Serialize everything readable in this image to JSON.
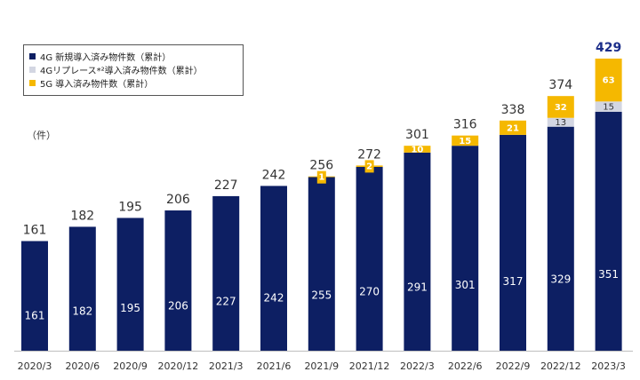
{
  "chart_data": {
    "type": "bar",
    "stacked": true,
    "unit": "（件）",
    "categories": [
      "2020/3",
      "2020/6",
      "2020/9",
      "2020/12",
      "2021/3",
      "2021/6",
      "2021/9",
      "2021/12",
      "2022/3",
      "2022/6",
      "2022/9",
      "2022/12",
      "2023/3"
    ],
    "series": [
      {
        "name": "4G 新規導入済み物件数（累計）",
        "color": "#0d1f63",
        "values": [
          161,
          182,
          195,
          206,
          227,
          242,
          255,
          270,
          291,
          301,
          317,
          329,
          351
        ]
      },
      {
        "name": "4Gリプレース*²導入済み物件数（累計）",
        "color": "#d3d6e2",
        "values": [
          0,
          0,
          0,
          0,
          0,
          0,
          0,
          0,
          0,
          0,
          0,
          13,
          15
        ]
      },
      {
        "name": "5G 導入済み物件数（累計）",
        "color": "#f5b800",
        "values": [
          0,
          0,
          0,
          0,
          0,
          0,
          1,
          2,
          10,
          15,
          21,
          32,
          63
        ]
      }
    ],
    "totals": [
      161,
      182,
      195,
      206,
      227,
      242,
      256,
      272,
      301,
      316,
      338,
      374,
      429
    ],
    "ylim": [
      0,
      429
    ]
  }
}
